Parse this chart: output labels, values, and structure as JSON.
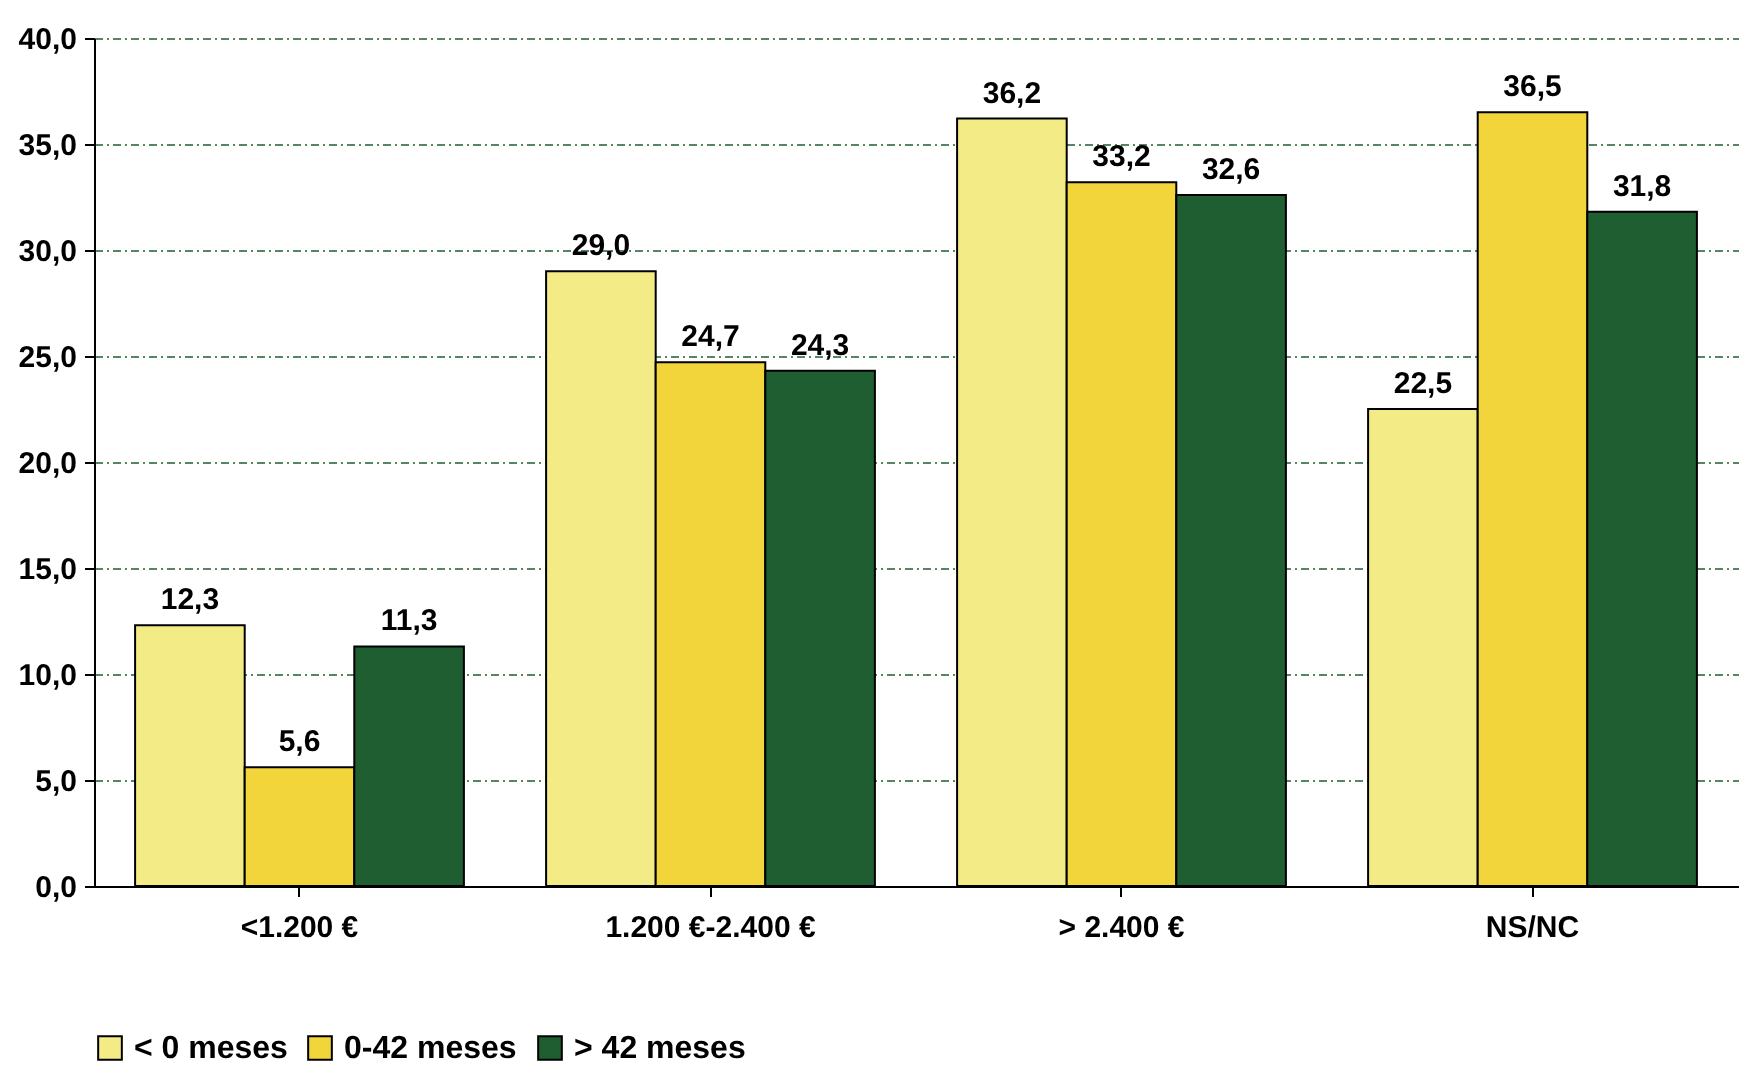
{
  "chart_data": {
    "type": "bar",
    "categories": [
      "<1.200 €",
      "1.200 €-2.400 €",
      "> 2.400 €",
      "NS/NC"
    ],
    "series": [
      {
        "name": "< 0 meses",
        "color": "#f3ec86",
        "values": [
          12.3,
          29.0,
          36.2,
          22.5
        ],
        "value_labels": [
          "12,3",
          "29,0",
          "36,2",
          "22,5"
        ]
      },
      {
        "name": "0-42 meses",
        "color": "#f2d53a",
        "values": [
          5.6,
          24.7,
          33.2,
          36.5
        ],
        "value_labels": [
          "5,6",
          "24,7",
          "33,2",
          "36,5"
        ]
      },
      {
        "name": "> 42 meses",
        "color": "#1f5e30",
        "values": [
          11.3,
          24.3,
          32.6,
          31.8
        ],
        "value_labels": [
          "11,3",
          "24,3",
          "32,6",
          "31,8"
        ]
      }
    ],
    "ylim": [
      0,
      40
    ],
    "yticks": [
      {
        "value": 0,
        "label": "0,0"
      },
      {
        "value": 5,
        "label": "5,0"
      },
      {
        "value": 10,
        "label": "10,0"
      },
      {
        "value": 15,
        "label": "15,0"
      },
      {
        "value": 20,
        "label": "20,0"
      },
      {
        "value": 25,
        "label": "25,0"
      },
      {
        "value": 30,
        "label": "30,0"
      },
      {
        "value": 35,
        "label": "35,0"
      },
      {
        "value": 40,
        "label": "40,0"
      }
    ],
    "grid": "y",
    "legend": "bottom"
  }
}
